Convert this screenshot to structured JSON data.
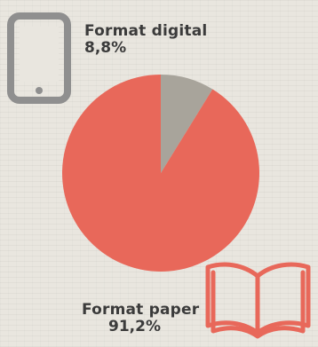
{
  "chart_data": {
    "type": "pie",
    "title": "",
    "categories": [
      "Format digital",
      "Format paper"
    ],
    "values": [
      8.8,
      91.2
    ],
    "value_labels": [
      "8,8%",
      "91,2%"
    ],
    "colors": [
      "#a8a49b",
      "#e8685a"
    ],
    "start_angle_deg": 0,
    "direction": "clockwise"
  },
  "icons": {
    "digital": "tablet-icon",
    "paper": "open-book-icon"
  },
  "colors": {
    "background": "#e9e6df",
    "text": "#3b3b3b",
    "tablet_icon": "#8f8f8f",
    "book_icon": "#e8685a"
  }
}
